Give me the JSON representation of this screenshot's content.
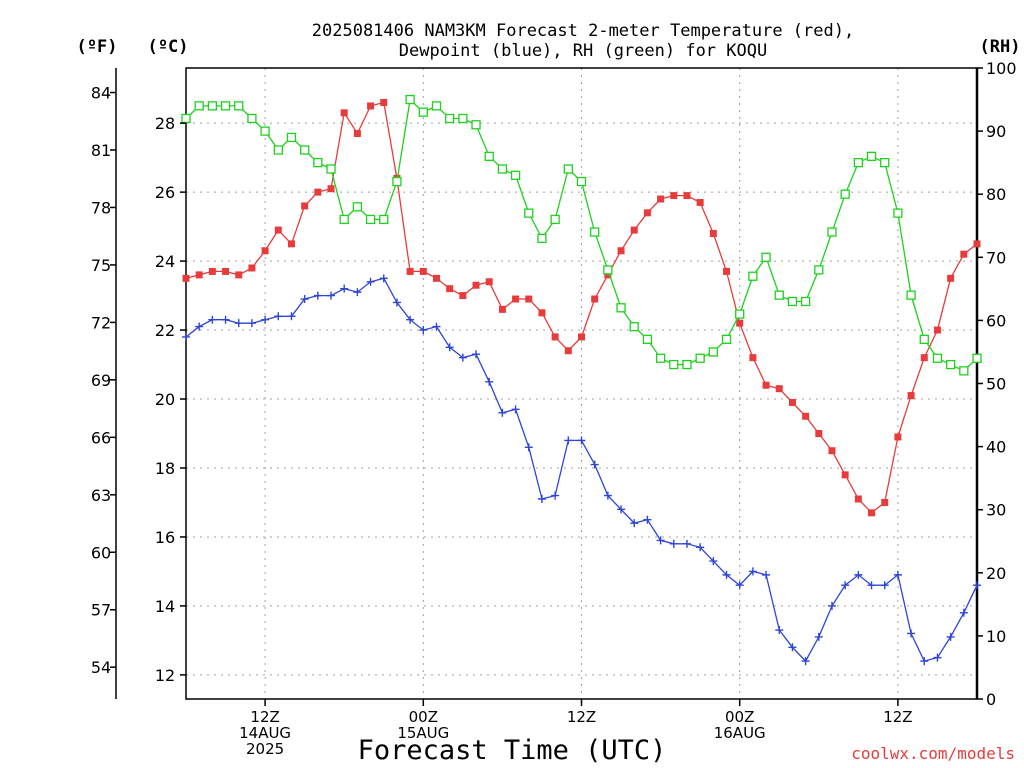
{
  "chart_data": {
    "type": "line",
    "title_lines": [
      "2025081406 NAM3KM Forecast 2-meter Temperature (red),",
      "Dewpoint (blue), RH (green) for KOQU"
    ],
    "xlabel": "Forecast Time (UTC)",
    "credit": "coolwx.com/models",
    "axes": {
      "left_f": {
        "label": "(ºF)",
        "ticks": [
          54,
          57,
          60,
          63,
          66,
          69,
          72,
          75,
          78,
          81,
          84
        ]
      },
      "left_c": {
        "label": "(ºC)",
        "ticks": [
          12,
          14,
          16,
          18,
          20,
          22,
          24,
          26,
          28
        ],
        "ylim": [
          11.3,
          29.6
        ]
      },
      "right_rh": {
        "label": "(RH)",
        "ticks": [
          0,
          10,
          20,
          30,
          40,
          50,
          60,
          70,
          80,
          90,
          100
        ],
        "ylim": [
          0,
          100
        ]
      }
    },
    "x_hours_from_start": [
      0,
      60
    ],
    "x_ticks": [
      {
        "hour": 6,
        "lines": [
          "12Z",
          "14AUG",
          "2025"
        ]
      },
      {
        "hour": 18,
        "lines": [
          "00Z",
          "15AUG"
        ]
      },
      {
        "hour": 30,
        "lines": [
          "12Z",
          ""
        ]
      },
      {
        "hour": 42,
        "lines": [
          "00Z",
          "16AUG"
        ]
      },
      {
        "hour": 54,
        "lines": [
          "12Z",
          ""
        ]
      }
    ],
    "grid": true,
    "series": [
      {
        "name": "Temperature",
        "units": "C",
        "color": "#e83c3c",
        "marker": "filled-square",
        "values": [
          23.5,
          23.6,
          23.7,
          23.7,
          23.6,
          23.8,
          24.3,
          24.9,
          24.5,
          25.6,
          26.0,
          26.1,
          28.3,
          27.7,
          28.5,
          28.6,
          26.4,
          23.7,
          23.7,
          23.5,
          23.2,
          23.0,
          23.3,
          23.4,
          22.6,
          22.9,
          22.9,
          22.5,
          21.8,
          21.4,
          21.8,
          22.9,
          23.6,
          24.3,
          24.9,
          25.4,
          25.8,
          25.9,
          25.9,
          25.7,
          24.8,
          23.7,
          22.2,
          21.2,
          20.4,
          20.3,
          19.9,
          19.5,
          19.0,
          18.5,
          17.8,
          17.1,
          16.7,
          17.0,
          18.9,
          20.1,
          21.2,
          22.0,
          23.5,
          24.2,
          24.5
        ]
      },
      {
        "name": "Dewpoint",
        "units": "C",
        "color": "#2d45d8",
        "marker": "plus",
        "values": [
          21.8,
          22.1,
          22.3,
          22.3,
          22.2,
          22.2,
          22.3,
          22.4,
          22.4,
          22.9,
          23.0,
          23.0,
          23.2,
          23.1,
          23.4,
          23.5,
          22.8,
          22.3,
          22.0,
          22.1,
          21.5,
          21.2,
          21.3,
          20.5,
          19.6,
          19.7,
          18.6,
          17.1,
          17.2,
          18.8,
          18.8,
          18.1,
          17.2,
          16.8,
          16.4,
          16.5,
          15.9,
          15.8,
          15.8,
          15.7,
          15.3,
          14.9,
          14.6,
          15.0,
          14.9,
          13.3,
          12.8,
          12.4,
          13.1,
          14.0,
          14.6,
          14.9,
          14.6,
          14.6,
          14.9,
          13.2,
          12.4,
          12.5,
          13.1,
          13.8,
          14.6
        ]
      },
      {
        "name": "RH",
        "units": "%",
        "color": "#1ed11e",
        "marker": "open-square",
        "values": [
          92,
          94,
          94,
          94,
          94,
          92,
          90,
          87,
          89,
          87,
          85,
          84,
          76,
          78,
          76,
          76,
          82,
          95,
          93,
          94,
          92,
          92,
          91,
          86,
          84,
          83,
          77,
          73,
          76,
          84,
          82,
          74,
          68,
          62,
          59,
          57,
          54,
          53,
          53,
          54,
          55,
          57,
          61,
          67,
          70,
          64,
          63,
          63,
          68,
          74,
          80,
          85,
          86,
          85,
          77,
          64,
          57,
          54,
          53,
          52,
          54
        ]
      }
    ]
  }
}
